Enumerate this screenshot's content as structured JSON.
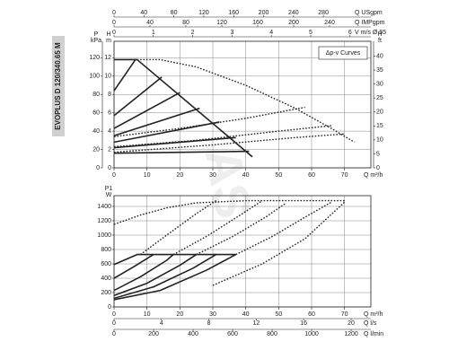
{
  "title": "EVOPLUS D 120/340.65 M",
  "watermark": "AS",
  "chart_data": [
    {
      "type": "line",
      "grid": true,
      "legend_label": "Δp-v Curves",
      "legend": "upper right",
      "xlabel": "Q m³/h",
      "xlim": [
        0,
        78
      ],
      "xticks": [
        0,
        10,
        20,
        30,
        40,
        50,
        60,
        70
      ],
      "ylabel": [
        "H",
        "m"
      ],
      "ylim": [
        0,
        13.8
      ],
      "yticks": [
        0,
        2,
        4,
        6,
        8,
        10,
        12
      ],
      "extra_axes": [
        {
          "side": "left",
          "label": [
            "P",
            "kPa"
          ],
          "lim": [
            0,
            138
          ],
          "ticks": [
            0,
            20,
            40,
            60,
            80,
            100,
            120
          ]
        },
        {
          "side": "right",
          "label": [
            "H",
            "ft"
          ],
          "lim": [
            0,
            45.3
          ],
          "ticks": [
            0,
            5,
            10,
            15,
            20,
            25,
            30,
            35,
            40
          ]
        },
        {
          "side": "top",
          "label": "Q USgpm",
          "lim": [
            0,
            343.5
          ],
          "ticks": [
            0,
            40,
            80,
            120,
            160,
            200,
            240,
            280
          ]
        },
        {
          "side": "top",
          "label": "Q IMPgpm",
          "lim": [
            0,
            286
          ],
          "ticks": [
            0,
            40,
            80,
            120,
            160,
            200,
            240
          ]
        },
        {
          "side": "top",
          "label": "V m/s Ø 65",
          "lim": [
            0,
            6.53
          ],
          "ticks": [
            0,
            1,
            2,
            3,
            4,
            5,
            6
          ]
        }
      ],
      "series": [
        {
          "color": "#222222",
          "style": "solid",
          "x": [
            0,
            7,
            42
          ],
          "values": [
            11.8,
            11.8,
            1.2
          ]
        },
        {
          "color": "#222222",
          "style": "solid",
          "x": [
            0,
            6.5
          ],
          "values": [
            8.4,
            11.8
          ]
        },
        {
          "color": "#222222",
          "style": "solid",
          "x": [
            0,
            14.5
          ],
          "values": [
            5.7,
            9.9
          ]
        },
        {
          "color": "#222222",
          "style": "solid",
          "x": [
            0,
            20
          ],
          "values": [
            4.3,
            8.2
          ]
        },
        {
          "color": "#222222",
          "style": "solid",
          "x": [
            0,
            26
          ],
          "values": [
            3.5,
            6.5
          ]
        },
        {
          "color": "#222222",
          "style": "solid",
          "x": [
            0,
            32
          ],
          "values": [
            2.8,
            5
          ]
        },
        {
          "color": "#222222",
          "style": "solid",
          "x": [
            0,
            37
          ],
          "values": [
            2.2,
            3.3
          ]
        },
        {
          "color": "#222222",
          "style": "solid",
          "x": [
            0,
            41
          ],
          "values": [
            1.6,
            1.8
          ]
        },
        {
          "color": "#222222",
          "style": "dotted",
          "x": [
            7,
            14,
            25,
            40,
            55,
            66,
            73
          ],
          "values": [
            11.8,
            11.8,
            11,
            9,
            6.5,
            4.3,
            2.8
          ]
        },
        {
          "color": "#222222",
          "style": "dotted",
          "x": [
            0,
            20,
            40,
            58
          ],
          "values": [
            3.4,
            4.3,
            5.4,
            6.6
          ]
        },
        {
          "color": "#222222",
          "style": "dotted",
          "x": [
            0,
            25,
            50,
            66
          ],
          "values": [
            2.3,
            3,
            4,
            4.6
          ]
        },
        {
          "color": "#222222",
          "style": "dotted",
          "x": [
            0,
            30,
            55,
            70
          ],
          "values": [
            1.7,
            2.5,
            3.3,
            3.7
          ]
        }
      ]
    },
    {
      "type": "line",
      "grid": true,
      "xlabel": "Q m³/h",
      "xlim": [
        0,
        78
      ],
      "xticks": [
        0,
        10,
        20,
        30,
        40,
        50,
        60,
        70
      ],
      "ylabel": [
        "P1",
        "W"
      ],
      "ylim": [
        0,
        1550
      ],
      "yticks": [
        0,
        200,
        400,
        600,
        800,
        1000,
        1200,
        1400
      ],
      "extra_axes": [
        {
          "side": "bottom",
          "label": "Q l/s",
          "lim": [
            0,
            21.67
          ],
          "ticks": [
            0,
            4,
            8,
            12,
            16,
            20
          ]
        },
        {
          "side": "bottom",
          "label": "Q l/min",
          "lim": [
            0,
            1300
          ],
          "ticks": [
            0,
            200,
            400,
            600,
            800,
            1000,
            1200
          ]
        }
      ],
      "series": [
        {
          "color": "#222222",
          "style": "solid",
          "x": [
            0,
            7,
            37
          ],
          "values": [
            590,
            730,
            730
          ]
        },
        {
          "color": "#222222",
          "style": "solid",
          "x": [
            0,
            6,
            12
          ],
          "values": [
            400,
            560,
            730
          ]
        },
        {
          "color": "#222222",
          "style": "solid",
          "x": [
            0,
            8,
            16,
            18
          ],
          "values": [
            230,
            420,
            650,
            730
          ]
        },
        {
          "color": "#222222",
          "style": "solid",
          "x": [
            0,
            10,
            20,
            25
          ],
          "values": [
            160,
            330,
            580,
            730
          ]
        },
        {
          "color": "#222222",
          "style": "solid",
          "x": [
            0,
            12,
            24,
            31
          ],
          "values": [
            120,
            280,
            540,
            730
          ]
        },
        {
          "color": "#222222",
          "style": "solid",
          "x": [
            0,
            14,
            28,
            37
          ],
          "values": [
            100,
            230,
            510,
            730
          ]
        },
        {
          "color": "#222222",
          "style": "dotted",
          "x": [
            0,
            8,
            16,
            25,
            40,
            55,
            70
          ],
          "values": [
            1150,
            1280,
            1380,
            1450,
            1480,
            1480,
            1480
          ]
        },
        {
          "color": "#222222",
          "style": "dotted",
          "x": [
            8,
            16,
            25,
            31
          ],
          "values": [
            730,
            1000,
            1300,
            1480
          ]
        },
        {
          "color": "#222222",
          "style": "dotted",
          "x": [
            18,
            28,
            38,
            45
          ],
          "values": [
            730,
            980,
            1270,
            1480
          ]
        },
        {
          "color": "#222222",
          "style": "dotted",
          "x": [
            25,
            36,
            46,
            52
          ],
          "values": [
            730,
            980,
            1250,
            1440
          ]
        },
        {
          "color": "#222222",
          "style": "dotted",
          "x": [
            37,
            48,
            58,
            66
          ],
          "values": [
            730,
            980,
            1250,
            1460
          ]
        },
        {
          "color": "#222222",
          "style": "dotted",
          "x": [
            30,
            45,
            58,
            70
          ],
          "values": [
            300,
            600,
            950,
            1460
          ]
        }
      ]
    }
  ]
}
